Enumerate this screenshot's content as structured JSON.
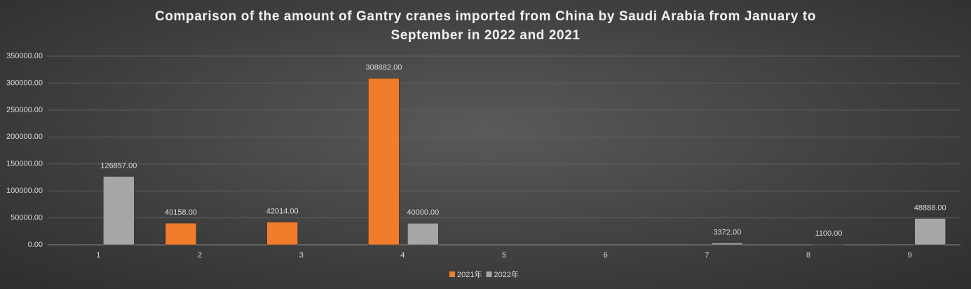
{
  "chart_data": {
    "type": "bar",
    "title": "Comparison of the amount of Gantry cranes imported from China by Saudi Arabia from January to September in 2022 and 2021",
    "categories": [
      "1",
      "2",
      "3",
      "4",
      "5",
      "6",
      "7",
      "8",
      "9"
    ],
    "series": [
      {
        "name": "2021年",
        "color": "#f07c2c",
        "values": [
          null,
          40158,
          42014,
          308882,
          null,
          null,
          null,
          null,
          null
        ],
        "value_labels": [
          null,
          "40158.00",
          "42014.00",
          "308882.00",
          null,
          null,
          null,
          null,
          null
        ]
      },
      {
        "name": "2022年",
        "color": "#a6a6a6",
        "values": [
          126857,
          null,
          null,
          40000,
          null,
          null,
          3372,
          1100,
          48888
        ],
        "value_labels": [
          "126857.00",
          null,
          null,
          "40000.00",
          null,
          null,
          "3372.00",
          "1100.00",
          "48888.00"
        ]
      }
    ],
    "ylim": [
      0,
      350000
    ],
    "yticks": [
      {
        "value": 0,
        "label": "0.00"
      },
      {
        "value": 50000,
        "label": "50000.00"
      },
      {
        "value": 100000,
        "label": "100000.00"
      },
      {
        "value": 150000,
        "label": "150000.00"
      },
      {
        "value": 200000,
        "label": "200000.00"
      },
      {
        "value": 250000,
        "label": "250000.00"
      },
      {
        "value": 300000,
        "label": "300000.00"
      },
      {
        "value": 350000,
        "label": "350000.00"
      }
    ],
    "grid": true,
    "legend": "bottom"
  }
}
